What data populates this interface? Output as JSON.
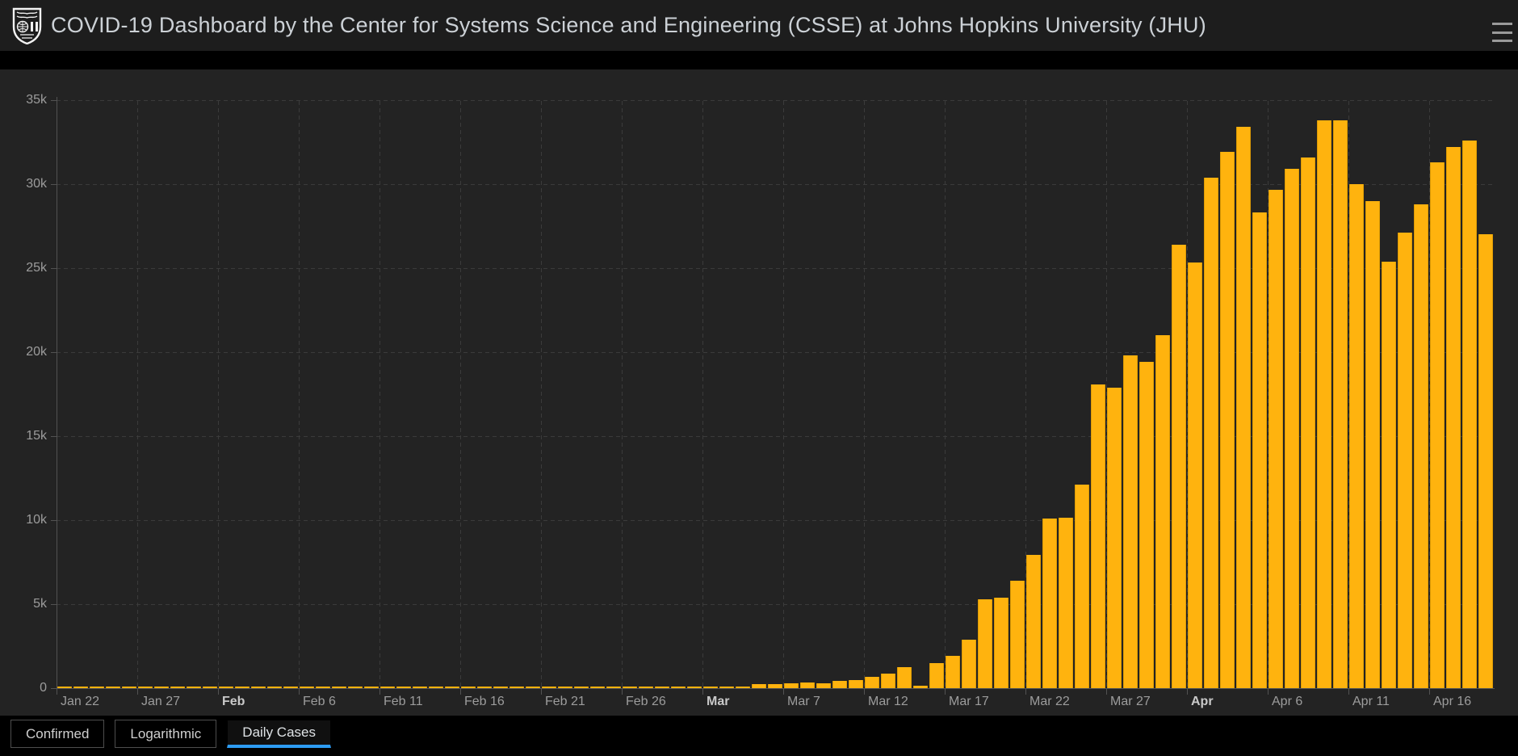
{
  "header": {
    "title": "COVID-19 Dashboard by the Center for Systems Science and Engineering (CSSE) at Johns Hopkins University (JHU)",
    "logo_icon": "jhu-shield-logo",
    "menu_icon": "hamburger-menu"
  },
  "tabs": [
    {
      "label": "Confirmed",
      "active": false
    },
    {
      "label": "Logarithmic",
      "active": false
    },
    {
      "label": "Daily Cases",
      "active": true
    }
  ],
  "colors": {
    "header_bg": "#1d1d1d",
    "pane_bg": "#232323",
    "bar": "#ffb30e",
    "bar_edge": "#de9b04",
    "grid": "#3b3b3b",
    "axis": "#525252",
    "label": "#9c9c9c",
    "active_tab_underline": "#2d9cf4",
    "title_text": "#ccd1d6"
  },
  "chart_data": {
    "type": "bar",
    "title": "Daily Cases",
    "xlabel": "",
    "ylabel": "",
    "ylim": [
      0,
      35000
    ],
    "grid": "dashed",
    "legend_position": "none",
    "ytick_step": 5000,
    "ytick_labels": [
      "0",
      "5k",
      "10k",
      "15k",
      "20k",
      "25k",
      "30k",
      "35k"
    ],
    "xticks": [
      {
        "label": "Jan 22",
        "bold": false
      },
      {
        "label": "Jan 27",
        "bold": false
      },
      {
        "label": "Feb",
        "bold": true
      },
      {
        "label": "Feb 6",
        "bold": false
      },
      {
        "label": "Feb 11",
        "bold": false
      },
      {
        "label": "Feb 16",
        "bold": false
      },
      {
        "label": "Feb 21",
        "bold": false
      },
      {
        "label": "Feb 26",
        "bold": false
      },
      {
        "label": "Mar",
        "bold": true
      },
      {
        "label": "Mar 7",
        "bold": false
      },
      {
        "label": "Mar 12",
        "bold": false
      },
      {
        "label": "Mar 17",
        "bold": false
      },
      {
        "label": "Mar 22",
        "bold": false
      },
      {
        "label": "Mar 27",
        "bold": false
      },
      {
        "label": "Apr",
        "bold": true
      },
      {
        "label": "Apr 6",
        "bold": false
      },
      {
        "label": "Apr 11",
        "bold": false
      },
      {
        "label": "Apr 16",
        "bold": false
      }
    ],
    "dates": [
      "Jan 22",
      "Jan 23",
      "Jan 24",
      "Jan 25",
      "Jan 26",
      "Jan 27",
      "Jan 28",
      "Jan 29",
      "Jan 30",
      "Jan 31",
      "Feb 1",
      "Feb 2",
      "Feb 3",
      "Feb 4",
      "Feb 5",
      "Feb 6",
      "Feb 7",
      "Feb 8",
      "Feb 9",
      "Feb 10",
      "Feb 11",
      "Feb 12",
      "Feb 13",
      "Feb 14",
      "Feb 15",
      "Feb 16",
      "Feb 17",
      "Feb 18",
      "Feb 19",
      "Feb 20",
      "Feb 21",
      "Feb 22",
      "Feb 23",
      "Feb 24",
      "Feb 25",
      "Feb 26",
      "Feb 27",
      "Feb 28",
      "Feb 29",
      "Mar 1",
      "Mar 2",
      "Mar 3",
      "Mar 4",
      "Mar 5",
      "Mar 6",
      "Mar 7",
      "Mar 8",
      "Mar 9",
      "Mar 10",
      "Mar 11",
      "Mar 12",
      "Mar 13",
      "Mar 14",
      "Mar 15",
      "Mar 16",
      "Mar 17",
      "Mar 18",
      "Mar 19",
      "Mar 20",
      "Mar 21",
      "Mar 22",
      "Mar 23",
      "Mar 24",
      "Mar 25",
      "Mar 26",
      "Mar 27",
      "Mar 28",
      "Mar 29",
      "Mar 30",
      "Mar 31",
      "Apr 1",
      "Apr 2",
      "Apr 3",
      "Apr 4",
      "Apr 5",
      "Apr 6",
      "Apr 7",
      "Apr 8",
      "Apr 9",
      "Apr 10",
      "Apr 11",
      "Apr 12",
      "Apr 13",
      "Apr 14",
      "Apr 15",
      "Apr 16",
      "Apr 17",
      "Apr 18",
      "Apr 19"
    ],
    "values": [
      1,
      0,
      1,
      1,
      2,
      0,
      0,
      0,
      1,
      1,
      5,
      5,
      5,
      8,
      8,
      8,
      10,
      10,
      10,
      10,
      12,
      12,
      12,
      12,
      15,
      15,
      15,
      15,
      18,
      18,
      20,
      20,
      30,
      30,
      30,
      40,
      50,
      50,
      60,
      60,
      60,
      70,
      80,
      230,
      220,
      290,
      320,
      310,
      450,
      500,
      650,
      850,
      1250,
      150,
      1500,
      1900,
      2900,
      5300,
      5400,
      6400,
      7950,
      10100,
      10150,
      12100,
      18100,
      17900,
      19800,
      19400,
      21000,
      26400,
      25350,
      30400,
      31900,
      33400,
      28300,
      29650,
      30900,
      31600,
      33800,
      33800,
      30000,
      29000,
      25400,
      27100,
      28800,
      31300,
      32200,
      32600,
      27000
    ]
  }
}
